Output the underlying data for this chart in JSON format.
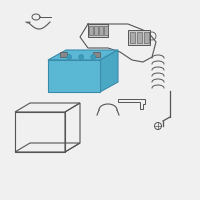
{
  "bg_color": "#f0f0f0",
  "line_color": "#555555",
  "battery_fill": "#5bb8d4",
  "battery_edge": "#3a8aaa",
  "battery_dark": "#4aa8c4",
  "tray_color": "none",
  "connector_fill": "#cccccc",
  "connector_dark": "#aaaaaa"
}
